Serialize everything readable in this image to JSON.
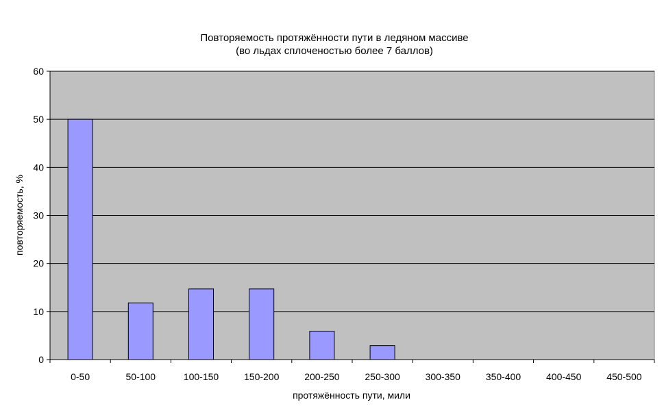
{
  "chart_data": {
    "type": "bar",
    "title": "Повторяемость протяжённости пути в ледяном массиве",
    "subtitle": "(во льдах сплоченостью более 7 баллов)",
    "xlabel": "протяжённость пути, мили",
    "ylabel": "повторяемость, %",
    "categories": [
      "0-50",
      "50-100",
      "100-150",
      "150-200",
      "200-250",
      "250-300",
      "300-350",
      "350-400",
      "400-450",
      "450-500"
    ],
    "values": [
      50,
      11.8,
      14.7,
      14.7,
      5.9,
      2.9,
      0,
      0,
      0,
      0
    ],
    "ylim": [
      0,
      60
    ],
    "yticks": [
      0,
      10,
      20,
      30,
      40,
      50,
      60
    ],
    "grid": true,
    "legend": "none",
    "colors": {
      "plot_background": "#c0c0c0",
      "bar_fill": "#9999ff",
      "bar_stroke": "#000000",
      "grid": "#000000"
    }
  }
}
